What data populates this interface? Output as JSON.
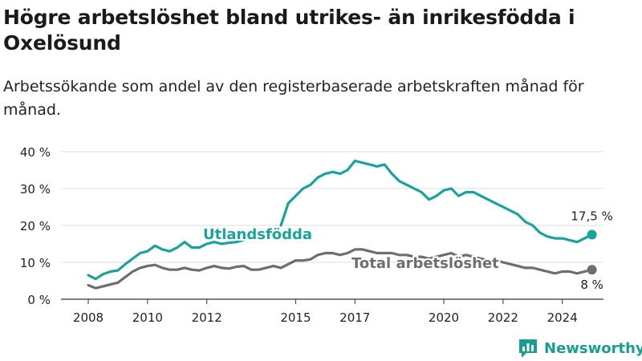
{
  "title": "Högre arbetslöshet bland utrikes- än inrikesfödda i Oxelösund",
  "subtitle": "Arbetssökande som andel av den registerbaserade arbetskraften månad för månad.",
  "brand": {
    "name": "Newsworthy",
    "icon": "bar-chart-logo-icon"
  },
  "colors": {
    "foreign_born": "#1aa398",
    "total": "#6e6e6e",
    "grid": "#dcdcdc",
    "axis": "#333333",
    "label_halo": "#ffffff"
  },
  "chart_data": {
    "type": "line",
    "title": "Högre arbetslöshet bland utrikes- än inrikesfödda i Oxelösund",
    "subtitle": "Arbetssökande som andel av den registerbaserade arbetskraften månad för månad.",
    "xlabel": "",
    "ylabel": "",
    "x_range": [
      2008,
      2025.2
    ],
    "ylim": [
      0,
      40
    ],
    "y_ticks": [
      0,
      10,
      20,
      30,
      40
    ],
    "y_tick_labels": [
      "0 %",
      "10 %",
      "20 %",
      "30 %",
      "40 %"
    ],
    "x_ticks": [
      2008,
      2010,
      2012,
      2015,
      2017,
      2020,
      2022,
      2024
    ],
    "x_tick_labels": [
      "2008",
      "2010",
      "2012",
      "2015",
      "2017",
      "2020",
      "2022",
      "2024"
    ],
    "grid": true,
    "legend": "inline labels",
    "series": [
      {
        "name": "Utlandsfödda",
        "color": "#1aa398",
        "end_label": "17,5 %",
        "gap": [
          2013.4,
          2014.5
        ],
        "points": [
          [
            2008.0,
            6.5
          ],
          [
            2008.25,
            5.5
          ],
          [
            2008.5,
            6.8
          ],
          [
            2008.75,
            7.5
          ],
          [
            2009.0,
            7.8
          ],
          [
            2009.25,
            9.5
          ],
          [
            2009.5,
            11.0
          ],
          [
            2009.75,
            12.5
          ],
          [
            2010.0,
            13.0
          ],
          [
            2010.25,
            14.5
          ],
          [
            2010.5,
            13.5
          ],
          [
            2010.75,
            13.0
          ],
          [
            2011.0,
            14.0
          ],
          [
            2011.25,
            15.5
          ],
          [
            2011.5,
            14.0
          ],
          [
            2011.75,
            14.0
          ],
          [
            2012.0,
            15.0
          ],
          [
            2012.25,
            15.5
          ],
          [
            2012.5,
            15.0
          ],
          [
            2012.75,
            15.3
          ],
          [
            2013.0,
            15.5
          ],
          [
            2013.4,
            16.5
          ],
          [
            2014.5,
            20.0
          ],
          [
            2014.75,
            26.0
          ],
          [
            2015.0,
            28.0
          ],
          [
            2015.25,
            30.0
          ],
          [
            2015.5,
            31.0
          ],
          [
            2015.75,
            33.0
          ],
          [
            2016.0,
            34.0
          ],
          [
            2016.25,
            34.5
          ],
          [
            2016.5,
            34.0
          ],
          [
            2016.75,
            35.0
          ],
          [
            2017.0,
            37.5
          ],
          [
            2017.25,
            37.0
          ],
          [
            2017.5,
            36.5
          ],
          [
            2017.75,
            36.0
          ],
          [
            2018.0,
            36.5
          ],
          [
            2018.25,
            34.0
          ],
          [
            2018.5,
            32.0
          ],
          [
            2018.75,
            31.0
          ],
          [
            2019.0,
            30.0
          ],
          [
            2019.25,
            29.0
          ],
          [
            2019.5,
            27.0
          ],
          [
            2019.75,
            28.0
          ],
          [
            2020.0,
            29.5
          ],
          [
            2020.25,
            30.0
          ],
          [
            2020.5,
            28.0
          ],
          [
            2020.75,
            29.0
          ],
          [
            2021.0,
            29.0
          ],
          [
            2021.25,
            28.0
          ],
          [
            2021.5,
            27.0
          ],
          [
            2021.75,
            26.0
          ],
          [
            2022.0,
            25.0
          ],
          [
            2022.25,
            24.0
          ],
          [
            2022.5,
            23.0
          ],
          [
            2022.75,
            21.0
          ],
          [
            2023.0,
            20.0
          ],
          [
            2023.25,
            18.0
          ],
          [
            2023.5,
            17.0
          ],
          [
            2023.75,
            16.5
          ],
          [
            2024.0,
            16.5
          ],
          [
            2024.25,
            16.0
          ],
          [
            2024.5,
            15.5
          ],
          [
            2024.75,
            16.5
          ],
          [
            2025.0,
            17.5
          ]
        ]
      },
      {
        "name": "Total arbetslöshet",
        "color": "#6e6e6e",
        "end_label": "8 %",
        "points": [
          [
            2008.0,
            3.8
          ],
          [
            2008.25,
            3.0
          ],
          [
            2008.5,
            3.5
          ],
          [
            2008.75,
            4.0
          ],
          [
            2009.0,
            4.5
          ],
          [
            2009.25,
            6.0
          ],
          [
            2009.5,
            7.5
          ],
          [
            2009.75,
            8.5
          ],
          [
            2010.0,
            9.0
          ],
          [
            2010.25,
            9.3
          ],
          [
            2010.5,
            8.5
          ],
          [
            2010.75,
            8.0
          ],
          [
            2011.0,
            8.0
          ],
          [
            2011.25,
            8.5
          ],
          [
            2011.5,
            8.0
          ],
          [
            2011.75,
            7.8
          ],
          [
            2012.0,
            8.5
          ],
          [
            2012.25,
            9.0
          ],
          [
            2012.5,
            8.5
          ],
          [
            2012.75,
            8.3
          ],
          [
            2013.0,
            8.8
          ],
          [
            2013.25,
            9.0
          ],
          [
            2013.5,
            8.0
          ],
          [
            2013.75,
            8.0
          ],
          [
            2014.0,
            8.5
          ],
          [
            2014.25,
            9.0
          ],
          [
            2014.5,
            8.5
          ],
          [
            2014.75,
            9.5
          ],
          [
            2015.0,
            10.5
          ],
          [
            2015.25,
            10.5
          ],
          [
            2015.5,
            10.8
          ],
          [
            2015.75,
            12.0
          ],
          [
            2016.0,
            12.5
          ],
          [
            2016.25,
            12.5
          ],
          [
            2016.5,
            12.0
          ],
          [
            2016.75,
            12.5
          ],
          [
            2017.0,
            13.5
          ],
          [
            2017.25,
            13.5
          ],
          [
            2017.5,
            13.0
          ],
          [
            2017.75,
            12.5
          ],
          [
            2018.0,
            12.5
          ],
          [
            2018.25,
            12.5
          ],
          [
            2018.5,
            12.0
          ],
          [
            2018.75,
            12.0
          ],
          [
            2019.0,
            11.5
          ],
          [
            2019.25,
            11.5
          ],
          [
            2019.5,
            11.0
          ],
          [
            2019.75,
            11.5
          ],
          [
            2020.0,
            12.0
          ],
          [
            2020.25,
            12.5
          ],
          [
            2020.5,
            11.5
          ],
          [
            2020.75,
            12.0
          ],
          [
            2021.0,
            11.5
          ],
          [
            2021.25,
            11.0
          ],
          [
            2021.5,
            10.5
          ],
          [
            2021.75,
            10.5
          ],
          [
            2022.0,
            10.0
          ],
          [
            2022.25,
            9.5
          ],
          [
            2022.5,
            9.0
          ],
          [
            2022.75,
            8.5
          ],
          [
            2023.0,
            8.5
          ],
          [
            2023.25,
            8.0
          ],
          [
            2023.5,
            7.5
          ],
          [
            2023.75,
            7.0
          ],
          [
            2024.0,
            7.5
          ],
          [
            2024.25,
            7.5
          ],
          [
            2024.5,
            7.0
          ],
          [
            2024.75,
            7.5
          ],
          [
            2025.0,
            8.0
          ]
        ]
      }
    ]
  }
}
